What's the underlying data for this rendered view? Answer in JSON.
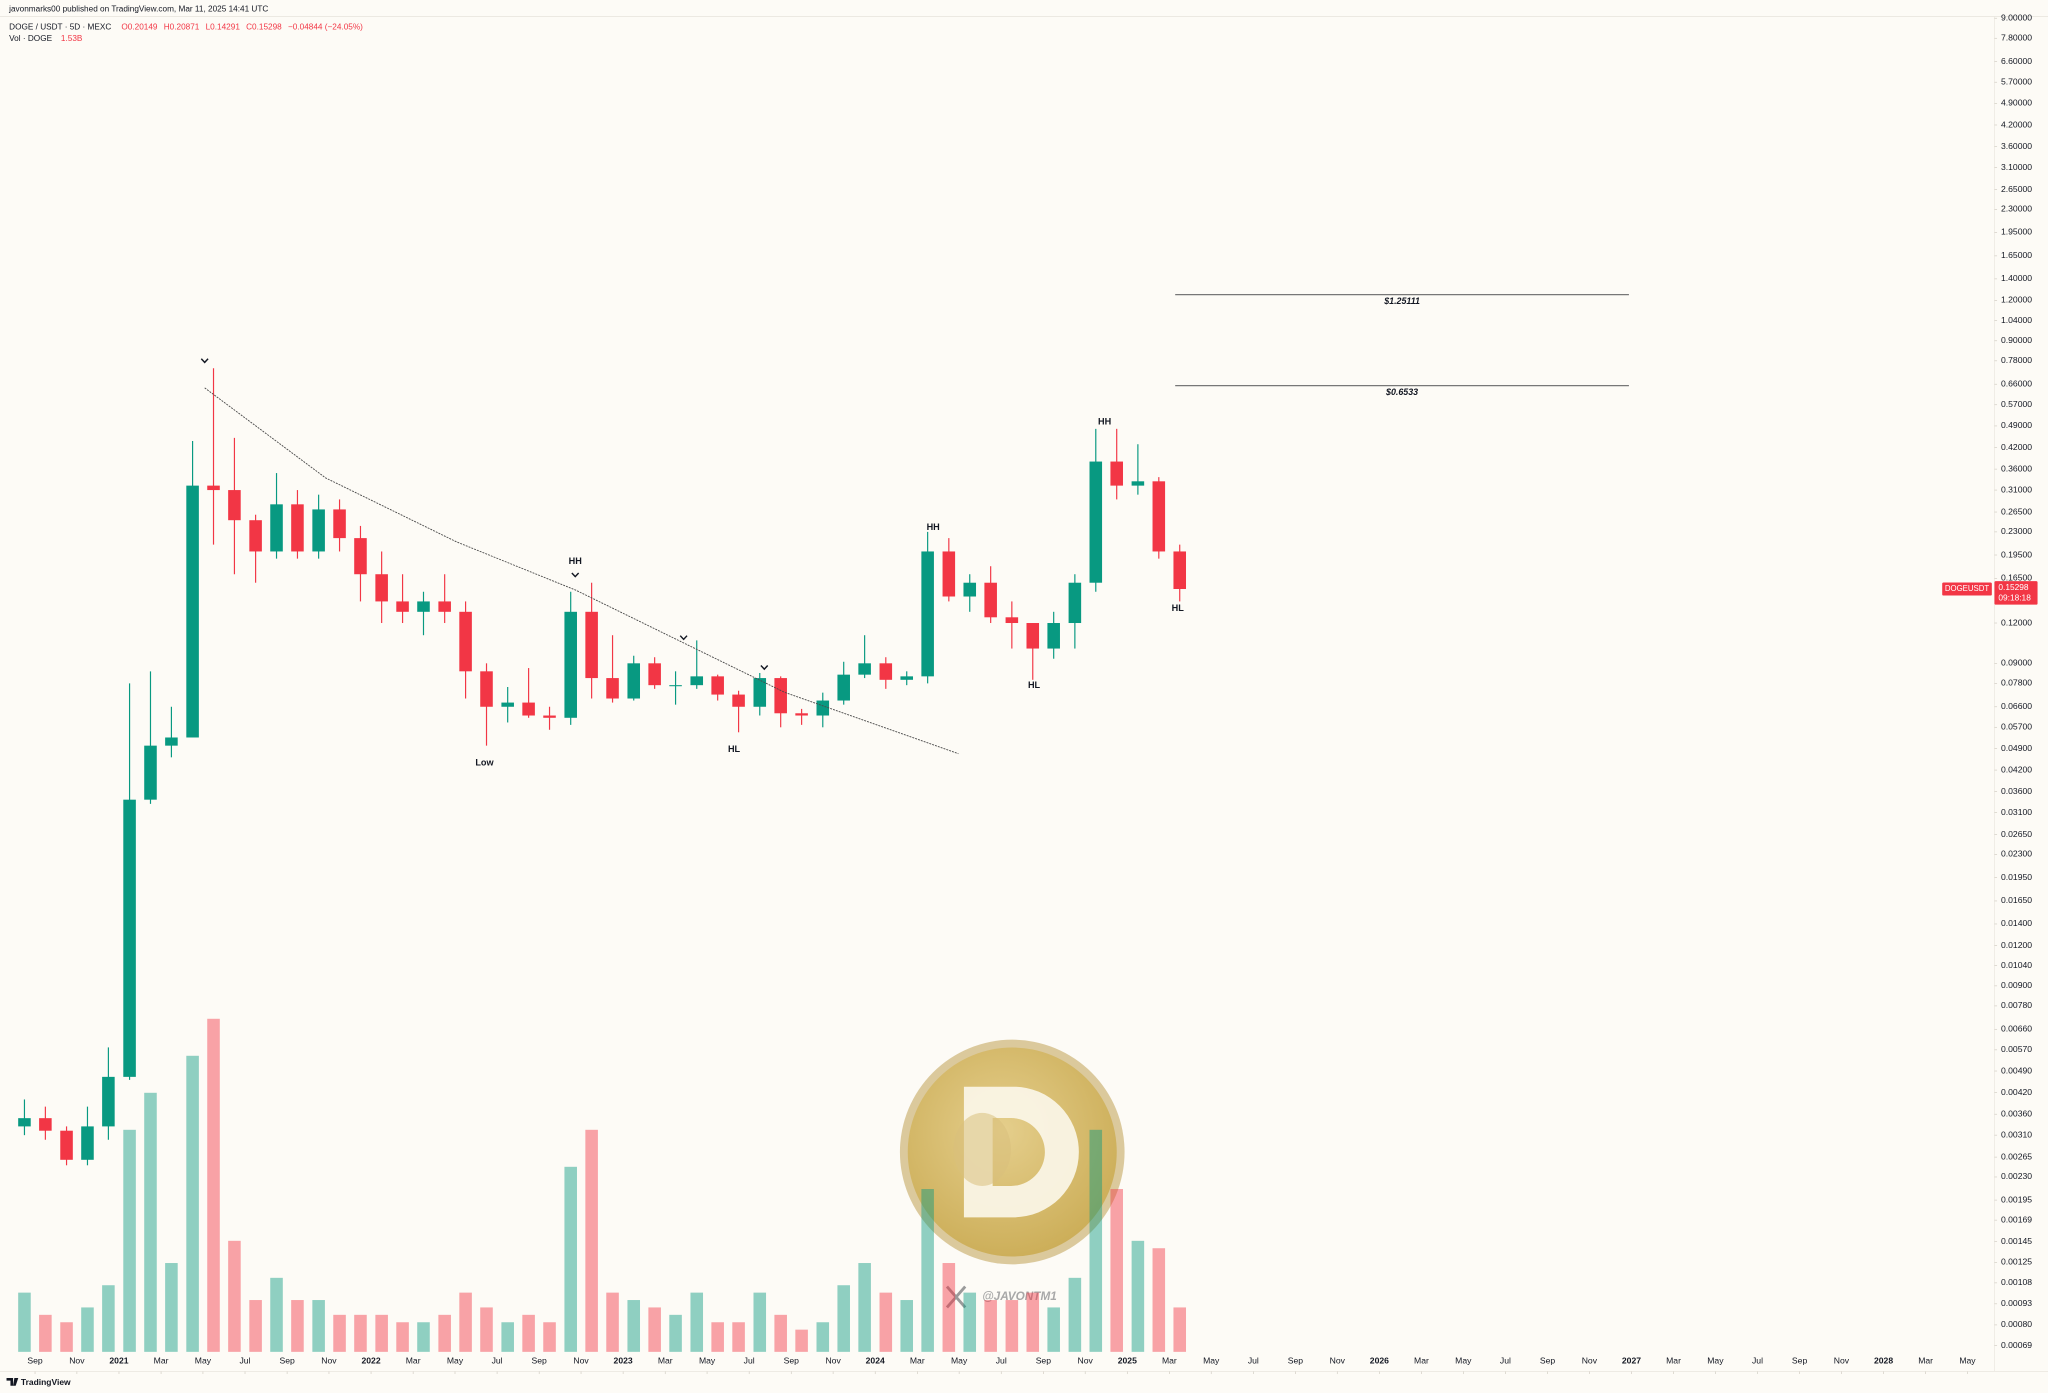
{
  "chart_data": {
    "type": "candlestick",
    "published": "javonmarks00 published on TradingView.com, Mar 11, 2025 14:41 UTC",
    "symbol": "DOGE / USDT · 5D · MEXC",
    "ohlc": [
      "O0.20149",
      "H0.20871",
      "L0.14291",
      "C0.15298",
      "−0.04844 (−24.05%)"
    ],
    "volume_legend": {
      "label": "Vol · DOGE",
      "value": "1.53B"
    },
    "last_price": {
      "symbol": "DOGEUSDT",
      "value": 0.15298,
      "countdown": "09:18:18"
    },
    "log_scale": true,
    "grid": false,
    "up_color": "#089981",
    "down_color": "#f23645",
    "x": [
      2020.625,
      2020.708,
      2020.792,
      2020.875,
      2020.958,
      2021.042,
      2021.125,
      2021.208,
      2021.292,
      2021.375,
      2021.458,
      2021.542,
      2021.625,
      2021.708,
      2021.792,
      2021.875,
      2021.958,
      2022.042,
      2022.125,
      2022.208,
      2022.292,
      2022.375,
      2022.458,
      2022.542,
      2022.625,
      2022.708,
      2022.792,
      2022.875,
      2022.958,
      2023.042,
      2023.125,
      2023.208,
      2023.292,
      2023.375,
      2023.458,
      2023.542,
      2023.625,
      2023.708,
      2023.792,
      2023.875,
      2023.958,
      2024.042,
      2024.125,
      2024.208,
      2024.292,
      2024.375,
      2024.458,
      2024.542,
      2024.625,
      2024.708,
      2024.792,
      2024.875,
      2024.958,
      2025.042,
      2025.125,
      2025.208
    ],
    "open": [
      0.0033,
      0.0035,
      0.0032,
      0.0026,
      0.0033,
      0.0047,
      0.034,
      0.05,
      0.053,
      0.32,
      0.31,
      0.25,
      0.2,
      0.28,
      0.2,
      0.27,
      0.22,
      0.17,
      0.14,
      0.13,
      0.14,
      0.13,
      0.085,
      0.066,
      0.068,
      0.062,
      0.061,
      0.13,
      0.081,
      0.07,
      0.09,
      0.077,
      0.077,
      0.082,
      0.072,
      0.066,
      0.081,
      0.063,
      0.062,
      0.069,
      0.083,
      0.09,
      0.08,
      0.082,
      0.2,
      0.145,
      0.16,
      0.125,
      0.12,
      0.1,
      0.12,
      0.16,
      0.38,
      0.32,
      0.33,
      0.2
    ],
    "high": [
      0.004,
      0.0038,
      0.0033,
      0.0038,
      0.0058,
      0.078,
      0.085,
      0.066,
      0.44,
      0.74,
      0.45,
      0.26,
      0.35,
      0.31,
      0.3,
      0.29,
      0.24,
      0.2,
      0.17,
      0.15,
      0.17,
      0.14,
      0.09,
      0.076,
      0.087,
      0.066,
      0.15,
      0.16,
      0.11,
      0.095,
      0.094,
      0.085,
      0.106,
      0.083,
      0.074,
      0.084,
      0.082,
      0.065,
      0.073,
      0.091,
      0.11,
      0.094,
      0.085,
      0.23,
      0.22,
      0.17,
      0.18,
      0.14,
      0.12,
      0.13,
      0.17,
      0.48,
      0.48,
      0.43,
      0.34,
      0.21
    ],
    "low": [
      0.0031,
      0.003,
      0.0025,
      0.0025,
      0.003,
      0.0046,
      0.033,
      0.046,
      0.053,
      0.21,
      0.17,
      0.16,
      0.19,
      0.19,
      0.19,
      0.2,
      0.14,
      0.12,
      0.12,
      0.11,
      0.12,
      0.07,
      0.05,
      0.059,
      0.061,
      0.056,
      0.058,
      0.07,
      0.068,
      0.069,
      0.075,
      0.067,
      0.075,
      0.069,
      0.055,
      0.062,
      0.057,
      0.058,
      0.057,
      0.067,
      0.081,
      0.075,
      0.077,
      0.078,
      0.14,
      0.13,
      0.12,
      0.1,
      0.08,
      0.093,
      0.1,
      0.15,
      0.29,
      0.3,
      0.19,
      0.14
    ],
    "close": [
      0.0035,
      0.0032,
      0.0026,
      0.0033,
      0.0047,
      0.034,
      0.05,
      0.053,
      0.32,
      0.31,
      0.25,
      0.2,
      0.28,
      0.2,
      0.27,
      0.22,
      0.17,
      0.14,
      0.13,
      0.14,
      0.13,
      0.085,
      0.066,
      0.068,
      0.062,
      0.061,
      0.13,
      0.081,
      0.07,
      0.09,
      0.077,
      0.077,
      0.082,
      0.072,
      0.066,
      0.081,
      0.063,
      0.062,
      0.069,
      0.083,
      0.09,
      0.08,
      0.082,
      0.2,
      0.145,
      0.16,
      0.125,
      0.12,
      0.1,
      0.12,
      0.16,
      0.38,
      0.32,
      0.33,
      0.2,
      0.15298
    ],
    "volume": [
      8,
      5,
      4,
      6,
      9,
      30,
      35,
      12,
      40,
      45,
      15,
      7,
      10,
      7,
      7,
      5,
      5,
      5,
      4,
      4,
      5,
      8,
      6,
      4,
      5,
      4,
      25,
      30,
      8,
      7,
      6,
      5,
      8,
      4,
      4,
      8,
      5,
      3,
      4,
      9,
      12,
      8,
      7,
      22,
      12,
      8,
      7,
      7,
      8,
      6,
      10,
      30,
      22,
      15,
      14,
      6
    ],
    "xlim": [
      2020.528,
      2028.44
    ],
    "xticks": [
      {
        "value": 2020.667,
        "label": "Sep"
      },
      {
        "value": 2020.833,
        "label": "Nov"
      },
      {
        "value": 2021,
        "label": "2021"
      },
      {
        "value": 2021.167,
        "label": "Mar"
      },
      {
        "value": 2021.333,
        "label": "May"
      },
      {
        "value": 2021.5,
        "label": "Jul"
      },
      {
        "value": 2021.667,
        "label": "Sep"
      },
      {
        "value": 2021.833,
        "label": "Nov"
      },
      {
        "value": 2022,
        "label": "2022"
      },
      {
        "value": 2022.167,
        "label": "Mar"
      },
      {
        "value": 2022.333,
        "label": "May"
      },
      {
        "value": 2022.5,
        "label": "Jul"
      },
      {
        "value": 2022.667,
        "label": "Sep"
      },
      {
        "value": 2022.833,
        "label": "Nov"
      },
      {
        "value": 2023,
        "label": "2023"
      },
      {
        "value": 2023.167,
        "label": "Mar"
      },
      {
        "value": 2023.333,
        "label": "May"
      },
      {
        "value": 2023.5,
        "label": "Jul"
      },
      {
        "value": 2023.667,
        "label": "Sep"
      },
      {
        "value": 2023.833,
        "label": "Nov"
      },
      {
        "value": 2024,
        "label": "2024"
      },
      {
        "value": 2024.167,
        "label": "Mar"
      },
      {
        "value": 2024.333,
        "label": "May"
      },
      {
        "value": 2024.5,
        "label": "Jul"
      },
      {
        "value": 2024.667,
        "label": "Sep"
      },
      {
        "value": 2024.833,
        "label": "Nov"
      },
      {
        "value": 2025,
        "label": "2025"
      },
      {
        "value": 2025.167,
        "label": "Mar"
      },
      {
        "value": 2025.333,
        "label": "May"
      },
      {
        "value": 2025.5,
        "label": "Jul"
      },
      {
        "value": 2025.667,
        "label": "Sep"
      },
      {
        "value": 2025.833,
        "label": "Nov"
      },
      {
        "value": 2026,
        "label": "2026"
      },
      {
        "value": 2026.167,
        "label": "Mar"
      },
      {
        "value": 2026.333,
        "label": "May"
      },
      {
        "value": 2026.5,
        "label": "Jul"
      },
      {
        "value": 2026.667,
        "label": "Sep"
      },
      {
        "value": 2026.833,
        "label": "Nov"
      },
      {
        "value": 2027,
        "label": "2027"
      },
      {
        "value": 2027.167,
        "label": "Mar"
      },
      {
        "value": 2027.333,
        "label": "May"
      },
      {
        "value": 2027.5,
        "label": "Jul"
      },
      {
        "value": 2027.667,
        "label": "Sep"
      },
      {
        "value": 2027.833,
        "label": "Nov"
      },
      {
        "value": 2028,
        "label": "2028"
      },
      {
        "value": 2028.167,
        "label": "Mar"
      },
      {
        "value": 2028.333,
        "label": "May"
      }
    ],
    "ylim": [
      0.00066,
      10.25
    ],
    "yticks": [
      {
        "value": 9,
        "label": "9.00000"
      },
      {
        "value": 7.8,
        "label": "7.80000"
      },
      {
        "value": 6.6,
        "label": "6.60000"
      },
      {
        "value": 5.7,
        "label": "5.70000"
      },
      {
        "value": 4.9,
        "label": "4.90000"
      },
      {
        "value": 4.2,
        "label": "4.20000"
      },
      {
        "value": 3.6,
        "label": "3.60000"
      },
      {
        "value": 3.1,
        "label": "3.10000"
      },
      {
        "value": 2.65,
        "label": "2.65000"
      },
      {
        "value": 2.3,
        "label": "2.30000"
      },
      {
        "value": 1.95,
        "label": "1.95000"
      },
      {
        "value": 1.65,
        "label": "1.65000"
      },
      {
        "value": 1.4,
        "label": "1.40000"
      },
      {
        "value": 1.2,
        "label": "1.20000"
      },
      {
        "value": 1.04,
        "label": "1.04000"
      },
      {
        "value": 0.9,
        "label": "0.90000"
      },
      {
        "value": 0.78,
        "label": "0.78000"
      },
      {
        "value": 0.66,
        "label": "0.66000"
      },
      {
        "value": 0.57,
        "label": "0.57000"
      },
      {
        "value": 0.49,
        "label": "0.49000"
      },
      {
        "value": 0.42,
        "label": "0.42000"
      },
      {
        "value": 0.36,
        "label": "0.36000"
      },
      {
        "value": 0.31,
        "label": "0.31000"
      },
      {
        "value": 0.265,
        "label": "0.26500"
      },
      {
        "value": 0.23,
        "label": "0.23000"
      },
      {
        "value": 0.195,
        "label": "0.19500"
      },
      {
        "value": 0.165,
        "label": "0.16500"
      },
      {
        "value": 0.12,
        "label": "0.12000"
      },
      {
        "value": 0.09,
        "label": "0.09000"
      },
      {
        "value": 0.078,
        "label": "0.07800"
      },
      {
        "value": 0.066,
        "label": "0.06600"
      },
      {
        "value": 0.057,
        "label": "0.05700"
      },
      {
        "value": 0.049,
        "label": "0.04900"
      },
      {
        "value": 0.042,
        "label": "0.04200"
      },
      {
        "value": 0.036,
        "label": "0.03600"
      },
      {
        "value": 0.031,
        "label": "0.03100"
      },
      {
        "value": 0.0265,
        "label": "0.02650"
      },
      {
        "value": 0.023,
        "label": "0.02300"
      },
      {
        "value": 0.0195,
        "label": "0.01950"
      },
      {
        "value": 0.0165,
        "label": "0.01650"
      },
      {
        "value": 0.014,
        "label": "0.01400"
      },
      {
        "value": 0.012,
        "label": "0.01200"
      },
      {
        "value": 0.0104,
        "label": "0.01040"
      },
      {
        "value": 0.009,
        "label": "0.00900"
      },
      {
        "value": 0.0078,
        "label": "0.00780"
      },
      {
        "value": 0.0066,
        "label": "0.00660"
      },
      {
        "value": 0.0057,
        "label": "0.00570"
      },
      {
        "value": 0.0049,
        "label": "0.00490"
      },
      {
        "value": 0.0042,
        "label": "0.00420"
      },
      {
        "value": 0.0036,
        "label": "0.00360"
      },
      {
        "value": 0.0031,
        "label": "0.00310"
      },
      {
        "value": 0.00265,
        "label": "0.00265"
      },
      {
        "value": 0.0023,
        "label": "0.00230"
      },
      {
        "value": 0.00195,
        "label": "0.00195"
      },
      {
        "value": 0.00169,
        "label": "0.00169"
      },
      {
        "value": 0.00145,
        "label": "0.00145"
      },
      {
        "value": 0.00125,
        "label": "0.00125"
      },
      {
        "value": 0.00108,
        "label": "0.00108"
      },
      {
        "value": 0.00093,
        "label": "0.00093"
      },
      {
        "value": 0.0008,
        "label": "0.00080"
      },
      {
        "value": 0.00069,
        "label": "0.00069"
      }
    ],
    "trendline": {
      "x": [
        2021.34,
        2021.82,
        2022.34,
        2022.81,
        2023.64,
        2024.33
      ],
      "y": [
        0.643,
        0.338,
        0.214,
        0.152,
        0.0732,
        0.0472
      ]
    },
    "levels": [
      {
        "label": "$1.25111",
        "value": 1.25111,
        "x": [
          2025.19,
          2026.99
        ]
      },
      {
        "label": "$0.6533",
        "value": 0.6533,
        "x": [
          2025.19,
          2026.99
        ]
      }
    ],
    "annotations": [
      {
        "text": "HH",
        "x": 2022.81,
        "y": 0.186
      },
      {
        "text": "Low",
        "x": 2022.45,
        "y": 0.0442
      },
      {
        "text": "HL",
        "x": 2023.44,
        "y": 0.0486
      },
      {
        "text": "HH",
        "x": 2024.23,
        "y": 0.237
      },
      {
        "text": "HL",
        "x": 2024.63,
        "y": 0.0767
      },
      {
        "text": "HH",
        "x": 2024.91,
        "y": 0.504
      },
      {
        "text": "HL",
        "x": 2025.2,
        "y": 0.133
      }
    ],
    "markers": [
      {
        "x": 2021.34,
        "y": 0.78
      },
      {
        "x": 2022.81,
        "y": 0.169
      },
      {
        "x": 2023.24,
        "y": 0.108
      },
      {
        "x": 2023.56,
        "y": 0.0873
      }
    ],
    "watermark": "@JAVONTM1",
    "footer": "TradingView"
  }
}
